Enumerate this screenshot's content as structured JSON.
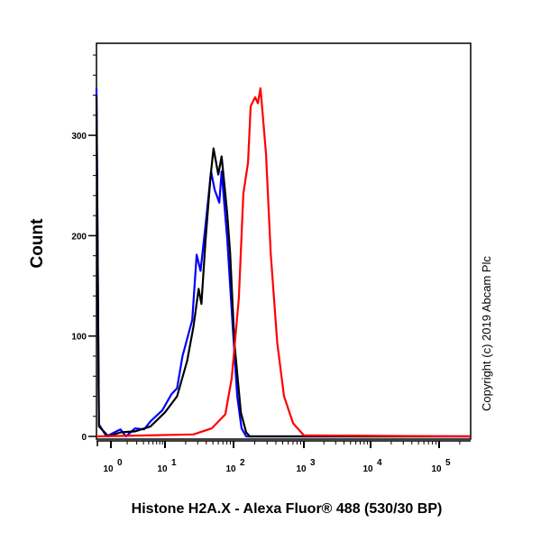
{
  "chart_data": {
    "type": "line",
    "title": "",
    "xlabel": "Histone H2A.X - Alexa Fluor® 488 (530/30 BP)",
    "ylabel": "Count",
    "x_scale": "log",
    "xlim": [
      0.54,
      290000
    ],
    "ylim": [
      0,
      392
    ],
    "x_ticks": [
      {
        "base": "10",
        "exp": "0",
        "value": 1
      },
      {
        "base": "10",
        "exp": "1",
        "value": 10
      },
      {
        "base": "10",
        "exp": "2",
        "value": 100
      },
      {
        "base": "10",
        "exp": "3",
        "value": 1000
      },
      {
        "base": "10",
        "exp": "4",
        "value": 10000
      },
      {
        "base": "10",
        "exp": "5",
        "value": 100000
      }
    ],
    "y_ticks": [
      0,
      100,
      200,
      300
    ],
    "grid": false,
    "annotation": "Copyright (c) 2019 Abcam Plc",
    "series": [
      {
        "color": "#0000ff",
        "points": [
          [
            0.54,
            347
          ],
          [
            0.6,
            12
          ],
          [
            0.83,
            0
          ],
          [
            1.5,
            7
          ],
          [
            1.9,
            0
          ],
          [
            2.8,
            8
          ],
          [
            4.1,
            7
          ],
          [
            5.4,
            15
          ],
          [
            8.9,
            26
          ],
          [
            12.4,
            42
          ],
          [
            15,
            48
          ],
          [
            18,
            80
          ],
          [
            25,
            116
          ],
          [
            29,
            181
          ],
          [
            33,
            165
          ],
          [
            39,
            210
          ],
          [
            47,
            264
          ],
          [
            53,
            246
          ],
          [
            62,
            233
          ],
          [
            67,
            264
          ],
          [
            81,
            197
          ],
          [
            97,
            111
          ],
          [
            113,
            40
          ],
          [
            130,
            8
          ],
          [
            151,
            0
          ],
          [
            290000,
            0
          ]
        ]
      },
      {
        "color": "#000000",
        "points": [
          [
            0.54,
            340
          ],
          [
            0.6,
            10
          ],
          [
            0.9,
            0
          ],
          [
            1.5,
            4
          ],
          [
            2.8,
            5
          ],
          [
            5.4,
            10
          ],
          [
            10,
            24
          ],
          [
            15,
            40
          ],
          [
            21,
            75
          ],
          [
            26,
            109
          ],
          [
            31,
            147
          ],
          [
            34,
            132
          ],
          [
            39,
            195
          ],
          [
            46,
            258
          ],
          [
            51,
            287
          ],
          [
            60,
            261
          ],
          [
            67,
            279
          ],
          [
            81,
            222
          ],
          [
            89,
            183
          ],
          [
            103,
            93
          ],
          [
            127,
            24
          ],
          [
            151,
            4
          ],
          [
            170,
            0
          ],
          [
            290000,
            0
          ]
        ]
      },
      {
        "color": "#ff0000",
        "points": [
          [
            0.54,
            0
          ],
          [
            26,
            2
          ],
          [
            48,
            8
          ],
          [
            76,
            22
          ],
          [
            94,
            58
          ],
          [
            119,
            138
          ],
          [
            138,
            242
          ],
          [
            161,
            273
          ],
          [
            175,
            329
          ],
          [
            203,
            338
          ],
          [
            222,
            332
          ],
          [
            242,
            347
          ],
          [
            289,
            282
          ],
          [
            337,
            183
          ],
          [
            418,
            93
          ],
          [
            523,
            40
          ],
          [
            704,
            13
          ],
          [
            1000,
            1
          ],
          [
            290000,
            0
          ]
        ]
      }
    ]
  }
}
